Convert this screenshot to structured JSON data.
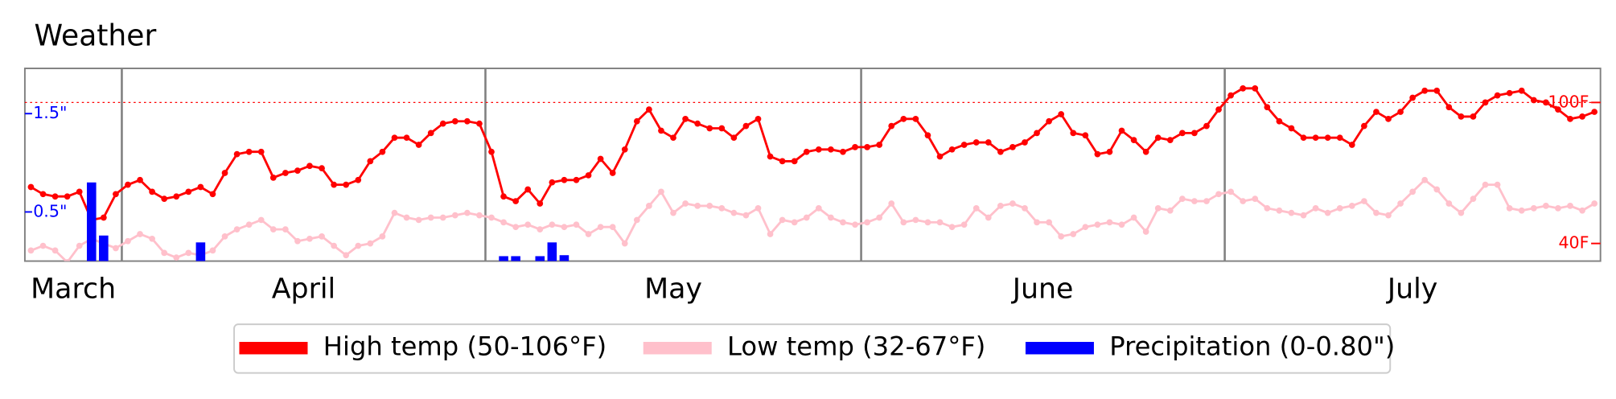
{
  "chart_data": {
    "type": "line",
    "title": "Weather",
    "xlim": [
      0,
      130
    ],
    "xticks": [
      8,
      38,
      69,
      99
    ],
    "month_labels": [
      "March",
      "April",
      "May",
      "June",
      "July"
    ],
    "ylim": [
      32.5,
      114.5
    ],
    "yticks": [
      {
        "value": 100,
        "label": "100F"
      },
      {
        "value": 40,
        "label": "40F"
      }
    ],
    "y2lim": [
      0,
      1.96
    ],
    "y2ticks": [
      {
        "value": 1.5,
        "label": "1.5\""
      },
      {
        "value": 0.5,
        "label": "0.5\""
      }
    ],
    "hline": {
      "value": 100,
      "color": "red",
      "style": "dotted"
    },
    "series": [
      {
        "name": "High temp (50-106°F)",
        "type": "line",
        "color": "red",
        "values": [
          64,
          61,
          60,
          60,
          62,
          50,
          51,
          61,
          65,
          67,
          62,
          59,
          60,
          62,
          64,
          61,
          70,
          78,
          79,
          79,
          68,
          70,
          71,
          73,
          72,
          65,
          65,
          67,
          75,
          79,
          85,
          85,
          82,
          87,
          91,
          92,
          92,
          91,
          79,
          60,
          58,
          63,
          57,
          66,
          67,
          67,
          69,
          76,
          70,
          80,
          92,
          97,
          88,
          85,
          93,
          91,
          89,
          89,
          85,
          90,
          93,
          77,
          75,
          75,
          79,
          80,
          80,
          79,
          81,
          81,
          82,
          90,
          93,
          93,
          86,
          77,
          80,
          82,
          83,
          83,
          79,
          81,
          83,
          87,
          92,
          95,
          87,
          86,
          78,
          79,
          88,
          84,
          79,
          85,
          84,
          87,
          87,
          90,
          97,
          103,
          106,
          106,
          98,
          92,
          89,
          85,
          85,
          85,
          85,
          82,
          90,
          96,
          93,
          96,
          102,
          105,
          105,
          98,
          94,
          94,
          100,
          103,
          104,
          105,
          101,
          100,
          97,
          93,
          94,
          96
        ]
      },
      {
        "name": "Low temp (32-67°F)",
        "type": "line",
        "color": "pink",
        "values": [
          37,
          39,
          37,
          32,
          39,
          42,
          40,
          38,
          41,
          44,
          42,
          36,
          34,
          36,
          35,
          37,
          43,
          46,
          48,
          50,
          46,
          46,
          41,
          42,
          43,
          39,
          35,
          39,
          40,
          43,
          53,
          51,
          50,
          51,
          51,
          52,
          53,
          52,
          51,
          49,
          47,
          48,
          46,
          48,
          47,
          48,
          44,
          47,
          47,
          40,
          50,
          56,
          62,
          53,
          57,
          56,
          56,
          55,
          53,
          52,
          55,
          44,
          50,
          49,
          51,
          55,
          51,
          49,
          48,
          49,
          51,
          57,
          49,
          50,
          49,
          49,
          47,
          48,
          55,
          51,
          56,
          57,
          55,
          49,
          49,
          43,
          44,
          47,
          48,
          49,
          48,
          51,
          45,
          55,
          54,
          59,
          58,
          58,
          61,
          62,
          58,
          59,
          55,
          54,
          53,
          52,
          55,
          53,
          55,
          56,
          58,
          53,
          52,
          57,
          62,
          67,
          63,
          57,
          53,
          59,
          65,
          65,
          55,
          54,
          55,
          56,
          55,
          56,
          54,
          57
        ]
      },
      {
        "name": "Precipitation (0-0.80\")",
        "type": "bar",
        "axis": "y2",
        "color": "blue",
        "values": [
          0,
          0,
          0,
          0,
          0,
          0.8,
          0.26,
          0,
          0,
          0,
          0,
          0,
          0,
          0,
          0.19,
          0,
          0,
          0,
          0,
          0,
          0,
          0,
          0,
          0,
          0,
          0,
          0,
          0,
          0,
          0,
          0,
          0,
          0,
          0,
          0,
          0,
          0,
          0,
          0,
          0.05,
          0.05,
          0,
          0.05,
          0.19,
          0.06,
          0,
          0,
          0,
          0,
          0,
          0,
          0,
          0,
          0,
          0,
          0,
          0,
          0,
          0,
          0,
          0,
          0,
          0,
          0,
          0,
          0,
          0,
          0,
          0,
          0,
          0,
          0,
          0,
          0,
          0,
          0,
          0,
          0,
          0,
          0,
          0,
          0,
          0,
          0,
          0,
          0,
          0,
          0,
          0,
          0,
          0,
          0,
          0,
          0,
          0,
          0,
          0,
          0,
          0,
          0,
          0,
          0,
          0,
          0,
          0,
          0,
          0,
          0,
          0,
          0,
          0,
          0,
          0,
          0,
          0,
          0,
          0,
          0,
          0,
          0,
          0,
          0,
          0,
          0,
          0,
          0,
          0,
          0,
          0,
          0
        ]
      }
    ]
  }
}
